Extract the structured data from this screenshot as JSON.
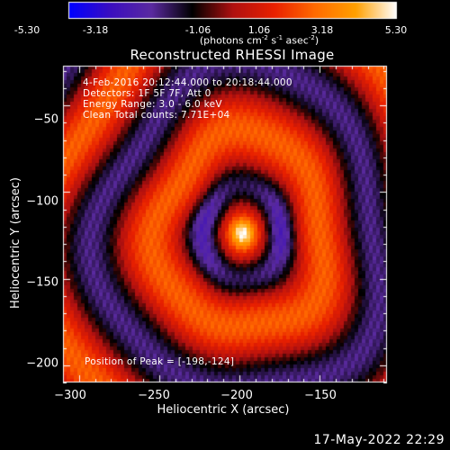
{
  "colorbar": {
    "tick_labels": [
      "-5.30",
      "-3.18",
      "-1.06",
      "1.06",
      "3.18",
      "5.30"
    ],
    "unit_parts": [
      "(photons cm",
      "-2",
      " s",
      "-1",
      " asec",
      "-2",
      ")"
    ],
    "range": [
      -5.3,
      5.3
    ]
  },
  "title": "Reconstructed RHESSI Image",
  "info_lines": [
    "4-Feb-2016 20:12:44.000 to 20:18:44.000",
    "Detectors: 1F 5F 7F, Att 0",
    "Energy Range: 3.0 - 6.0 keV",
    "Clean     Total counts: 7.71E+04"
  ],
  "peak_label": "Position of Peak = [-198,-124]",
  "footer_timestamp": "17-May-2022 22:29",
  "chart_data": {
    "type": "heatmap",
    "title": "Reconstructed RHESSI Image",
    "xlabel": "Heliocentric X (arcsec)",
    "ylabel": "Heliocentric Y (arcsec)",
    "xlim": [
      -310,
      -108
    ],
    "ylim": [
      -210,
      -27
    ],
    "x_ticks": [
      -300,
      -250,
      -200,
      -150
    ],
    "x_tick_labels": [
      "−300",
      "−250",
      "−200",
      "−150"
    ],
    "y_ticks": [
      -50,
      -100,
      -150,
      -200
    ],
    "y_tick_labels": [
      "−50",
      "−100",
      "−150",
      "−200"
    ],
    "peak": {
      "x": -198,
      "y": -124
    },
    "color_scale": {
      "min": -5.3,
      "max": 5.3
    },
    "colormap_stops": [
      "#0000ff",
      "#3b0ec0",
      "#5a2aa0",
      "#000000",
      "#b01010",
      "#e82000",
      "#ff6a00",
      "#ffa000",
      "#ffffff"
    ]
  }
}
